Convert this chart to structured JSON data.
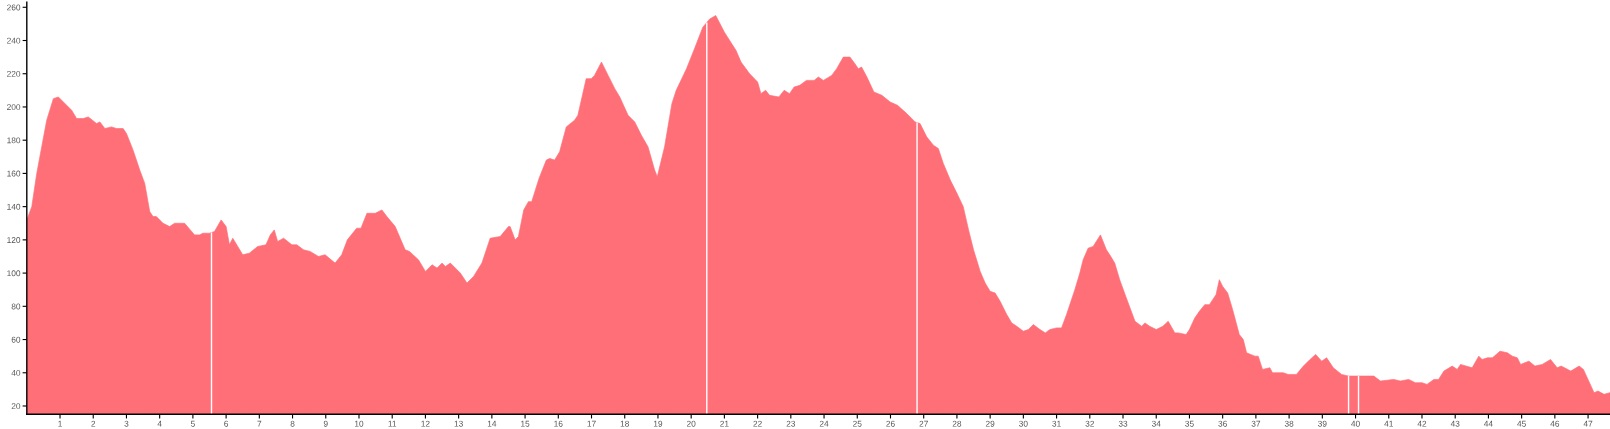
{
  "chart_data": {
    "type": "area",
    "color": "#ff6f78",
    "x": [
      0,
      0.15,
      0.3,
      0.45,
      0.6,
      0.8,
      0.95,
      1.2,
      1.35,
      1.5,
      1.7,
      1.85,
      2.1,
      2.2,
      2.35,
      2.55,
      2.7,
      2.9,
      3.0,
      3.2,
      3.4,
      3.55,
      3.7,
      3.8,
      3.9,
      4.1,
      4.3,
      4.45,
      4.75,
      5.05,
      5.2,
      5.3,
      5.5,
      5.65,
      5.85,
      6.0,
      6.1,
      6.2,
      6.35,
      6.5,
      6.7,
      6.95,
      7.2,
      7.33,
      7.45,
      7.55,
      7.73,
      7.98,
      8.13,
      8.33,
      8.53,
      8.78,
      8.98,
      9.28,
      9.48,
      9.65,
      9.93,
      10.06,
      10.24,
      10.49,
      10.69,
      10.84,
      11.09,
      11.39,
      11.52,
      11.79,
      12.0,
      12.2,
      12.35,
      12.5,
      12.6,
      12.75,
      13.05,
      13.25,
      13.45,
      13.7,
      13.95,
      14.25,
      14.5,
      14.55,
      14.7,
      14.8,
      14.96,
      15.1,
      15.2,
      15.42,
      15.64,
      15.74,
      15.89,
      16.04,
      16.24,
      16.49,
      16.59,
      16.84,
      16.99,
      17.09,
      17.3,
      17.5,
      17.7,
      17.85,
      18.1,
      18.3,
      18.5,
      18.7,
      18.9,
      18.98,
      19.2,
      19.42,
      19.55,
      19.86,
      20.1,
      20.35,
      20.56,
      20.74,
      21.0,
      21.35,
      21.5,
      21.76,
      22.0,
      22.1,
      22.24,
      22.36,
      22.64,
      22.8,
      22.96,
      23.1,
      23.27,
      23.47,
      23.7,
      23.83,
      23.98,
      24.23,
      24.38,
      24.58,
      24.78,
      24.93,
      25.03,
      25.13,
      25.29,
      25.5,
      25.74,
      25.99,
      26.21,
      26.49,
      26.74,
      26.89,
      27.09,
      27.29,
      27.44,
      27.59,
      27.8,
      28.0,
      28.19,
      28.35,
      28.5,
      28.7,
      28.85,
      29.0,
      29.15,
      29.3,
      29.5,
      29.65,
      29.8,
      30.0,
      30.15,
      30.3,
      30.5,
      30.66,
      30.8,
      31.0,
      31.15,
      31.3,
      31.55,
      31.7,
      31.8,
      31.95,
      32.1,
      32.32,
      32.5,
      32.6,
      32.75,
      32.9,
      33.1,
      33.36,
      33.56,
      33.66,
      33.8,
      34.0,
      34.2,
      34.36,
      34.56,
      34.66,
      34.9,
      35.0,
      35.16,
      35.3,
      35.46,
      35.6,
      35.8,
      35.9,
      36.0,
      36.15,
      36.3,
      36.5,
      36.62,
      36.72,
      36.97,
      37.07,
      37.2,
      37.42,
      37.5,
      37.82,
      37.97,
      38.22,
      38.43,
      38.63,
      38.8,
      38.98,
      39.13,
      39.33,
      39.58,
      39.78,
      39.98,
      40.3,
      40.55,
      40.75,
      41.15,
      41.35,
      41.6,
      41.8,
      42.0,
      42.15,
      42.36,
      42.5,
      42.66,
      42.91,
      43.06,
      43.16,
      43.51,
      43.71,
      43.81,
      43.97,
      44.12,
      44.35,
      44.57,
      44.72,
      44.87,
      44.97,
      45.22,
      45.4,
      45.62,
      45.87,
      46.07,
      46.19,
      46.48,
      46.73,
      46.86,
      47.18,
      47.3,
      47.48,
      47.66
    ],
    "values": [
      132,
      140,
      160,
      176,
      192,
      205,
      206,
      201,
      198,
      193,
      193,
      194,
      190,
      191,
      187,
      188,
      187,
      187,
      184,
      174,
      162,
      154,
      137,
      134,
      134,
      130,
      128,
      130,
      130,
      123,
      123,
      124,
      124,
      125,
      132,
      128,
      117,
      121,
      116,
      111,
      112,
      116,
      117,
      123,
      126,
      119,
      121,
      117,
      117,
      114,
      113,
      110,
      111,
      106,
      111,
      120,
      127,
      127,
      136,
      136,
      138,
      134,
      128,
      114,
      113,
      108,
      101,
      105,
      103,
      106,
      104,
      106,
      100,
      94,
      98,
      106,
      121,
      122,
      128,
      128,
      120,
      122,
      138,
      143,
      143,
      157,
      168,
      169,
      168,
      173,
      188,
      192,
      195,
      217,
      217,
      219,
      227,
      219,
      211,
      206,
      195,
      191,
      183,
      176,
      162,
      158,
      176,
      202,
      210,
      223,
      235,
      248,
      253,
      255,
      245,
      234,
      227,
      220,
      215,
      208,
      210,
      207,
      206,
      210,
      208,
      212,
      213,
      216,
      216,
      218,
      216,
      219,
      223,
      230,
      230,
      226,
      223,
      224,
      218,
      209,
      207,
      203,
      201,
      196,
      191,
      190,
      182,
      177,
      175,
      166,
      156,
      148,
      140,
      126,
      114,
      101,
      94,
      89,
      88,
      83,
      75,
      70,
      68,
      65,
      66,
      69,
      66,
      64,
      66,
      67,
      67,
      75,
      90,
      100,
      108,
      115,
      116,
      123,
      114,
      111,
      106,
      96,
      85,
      71,
      68,
      70,
      68,
      66,
      68,
      71,
      64,
      64,
      63,
      66,
      73,
      77,
      81,
      81,
      87,
      96,
      92,
      88,
      78,
      63,
      60,
      52,
      50,
      50,
      42,
      43,
      40,
      40,
      39,
      39,
      44,
      48,
      51,
      47,
      49,
      43,
      39,
      38,
      38,
      38,
      38,
      35,
      36,
      35,
      36,
      34,
      34,
      33,
      36,
      36,
      41,
      44,
      42,
      45,
      43,
      50,
      48,
      49,
      49,
      53,
      52,
      50,
      49,
      45,
      47,
      44,
      45,
      48,
      43,
      44,
      41,
      44,
      42,
      28,
      29,
      27,
      28
    ],
    "xlim": [
      0,
      47.66
    ],
    "ylim": [
      15,
      263
    ],
    "xticks": [
      1,
      2,
      3,
      4,
      5,
      6,
      7,
      8,
      9,
      10,
      11,
      12,
      13,
      14,
      15,
      16,
      17,
      18,
      19,
      20,
      21,
      22,
      23,
      24,
      25,
      26,
      27,
      28,
      29,
      30,
      31,
      32,
      33,
      34,
      35,
      36,
      37,
      38,
      39,
      40,
      41,
      42,
      43,
      44,
      45,
      46,
      47
    ],
    "yticks": [
      20,
      40,
      60,
      80,
      100,
      120,
      140,
      160,
      180,
      200,
      220,
      240,
      260
    ],
    "ref_lines": [
      {
        "axis": "x",
        "value": 5.56,
        "color": "#ffffff"
      },
      {
        "axis": "x",
        "value": 20.47,
        "color": "#ffffff"
      },
      {
        "axis": "x",
        "value": 26.8,
        "color": "#ffffff"
      },
      {
        "axis": "x",
        "value": 39.79,
        "color": "#ffffff"
      },
      {
        "axis": "x",
        "value": 40.09,
        "color": "#ffffff"
      }
    ]
  }
}
